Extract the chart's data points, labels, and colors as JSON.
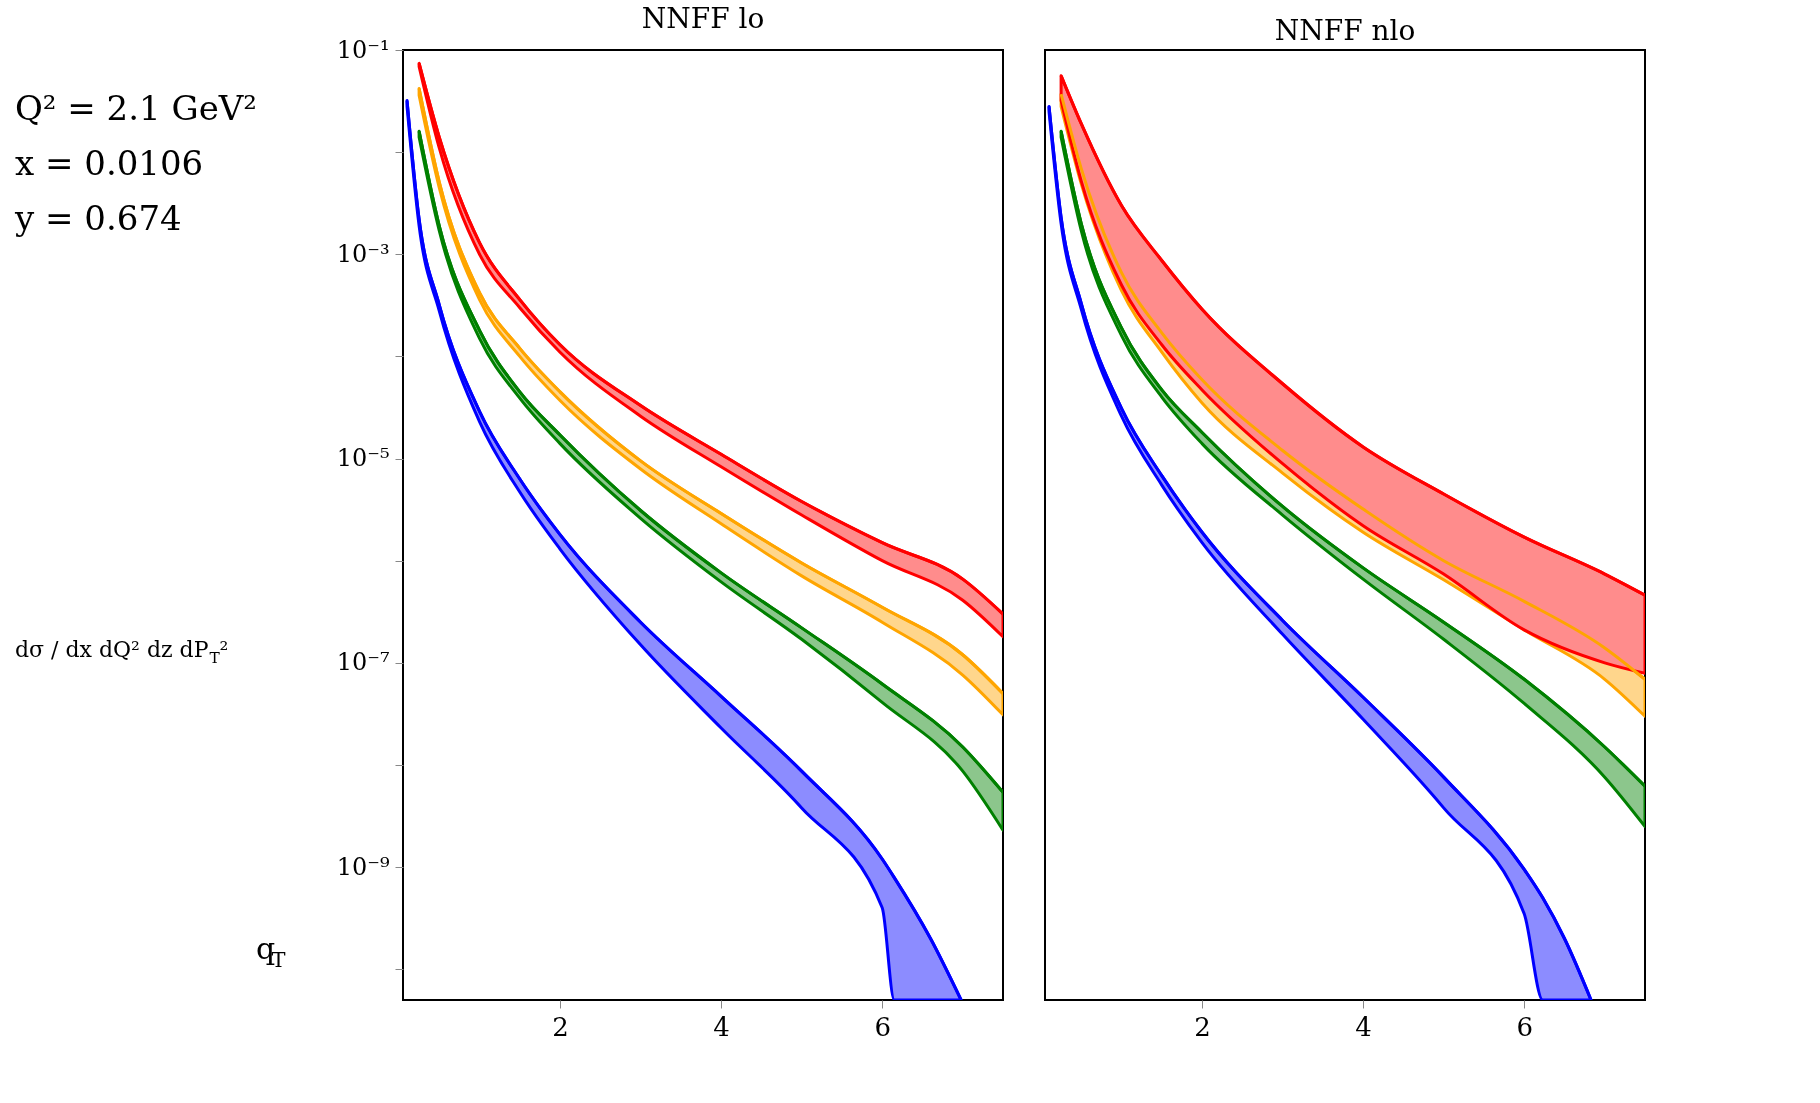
{
  "chart_data": [
    {
      "type": "other",
      "annotations": [
        "Q² = 2.1 GeV²",
        "x = 0.0106",
        "y = 0.674"
      ],
      "ylabel": "dσ / dx dQ² dz dP$_{T}$²",
      "xlabel": "q$_{T}$"
    },
    {
      "type": "line",
      "title": "NNFF lo",
      "log": "y",
      "xlim": [
        0.05,
        7.5
      ],
      "ylim": [
        5e-11,
        0.1
      ],
      "xticks": [
        2,
        4,
        6
      ],
      "yticks": [
        {
          "value": 0.1,
          "label": "10⁻¹"
        },
        {
          "value": 0.01,
          "label": null
        },
        {
          "value": 0.001,
          "label": "10⁻³"
        },
        {
          "value": 0.0001,
          "label": null
        },
        {
          "value": 1e-05,
          "label": "10⁻⁵"
        },
        {
          "value": 1e-06,
          "label": null
        },
        {
          "value": 1e-07,
          "label": "10⁻⁷"
        },
        {
          "value": 1e-08,
          "label": null
        },
        {
          "value": 1e-09,
          "label": "10⁻⁹"
        },
        {
          "value": 1e-10,
          "label": null
        }
      ],
      "grid": false,
      "x": [
        0.25,
        0.5,
        1,
        1.5,
        2,
        3,
        4,
        5,
        6,
        7,
        7.5
      ],
      "series": [
        {
          "color": "#0000ff",
          "x": [
            0.1,
            0.25,
            0.5,
            1,
            1.5,
            2,
            3,
            4,
            5,
            6,
            6.15,
            6.6,
            6.98
          ],
          "values": [
            0.032,
            0.0022,
            0.00032,
            2.9e-05,
            6.3e-06,
            1.8e-06,
            2.5e-07,
            4.7e-08,
            8.7e-09,
            1.2e-09,
            7.9e-10,
            2e-10,
            5e-11
          ],
          "upper": [
            0.032,
            0.0022,
            0.00032,
            2.9e-05,
            6.3e-06,
            1.8e-06,
            2.5e-07,
            4.7e-08,
            8.7e-09,
            1.2e-09,
            7.9e-10,
            2e-10,
            5e-11
          ],
          "lower": [
            0.028,
            0.0019,
            0.00028,
            2.3e-05,
            4.7e-06,
            1.3e-06,
            1.5e-07,
            2.3e-08,
            3.8e-09,
            4e-10,
            5e-11,
            5e-11,
            5e-11
          ]
        },
        {
          "color": "#008000",
          "values": [
            0.016,
            0.0019,
            0.00018,
            4.5e-05,
            1.7e-05,
            3.1e-06,
            7.6e-07,
            2.2e-07,
            6.2e-08,
            1.5e-08,
            5.4e-09
          ],
          "upper": [
            0.016,
            0.0019,
            0.00018,
            4.5e-05,
            1.7e-05,
            3.1e-06,
            7.6e-07,
            2.2e-07,
            6.2e-08,
            1.5e-08,
            5.4e-09
          ],
          "lower": [
            0.014,
            0.0017,
            0.00015,
            3.9e-05,
            1.4e-05,
            2.6e-06,
            6.2e-07,
            1.7e-07,
            4.1e-08,
            8.7e-09,
            2.3e-09
          ]
        },
        {
          "color": "#ffa500",
          "values": [
            0.042,
            0.0051,
            0.00042,
            0.00012,
            4.5e-05,
            9.5e-06,
            2.9e-06,
            9.5e-07,
            3.5e-07,
            1.2e-07,
            5e-08
          ],
          "upper": [
            0.042,
            0.0051,
            0.00042,
            0.00012,
            4.5e-05,
            9.5e-06,
            2.9e-06,
            9.5e-07,
            3.5e-07,
            1.2e-07,
            5e-08
          ],
          "lower": [
            0.036,
            0.0045,
            0.00036,
            0.0001,
            3.7e-05,
            7.9e-06,
            2.3e-06,
            7.1e-07,
            2.5e-07,
            7.6e-08,
            3.1e-08
          ]
        },
        {
          "color": "#ff0000",
          "values": [
            0.074,
            0.014,
            0.0013,
            0.00036,
            0.00013,
            3.3e-05,
            1.1e-05,
            3.8e-06,
            1.5e-06,
            6.6e-07,
            3e-07
          ],
          "upper": [
            0.074,
            0.014,
            0.0013,
            0.00036,
            0.00013,
            3.3e-05,
            1.1e-05,
            3.8e-06,
            1.5e-06,
            6.6e-07,
            3e-07
          ],
          "lower": [
            0.069,
            0.011,
            0.001,
            0.0003,
            0.00011,
            2.6e-05,
            8.3e-06,
            2.8e-06,
            1e-06,
            4.1e-07,
            1.8e-07
          ]
        }
      ]
    },
    {
      "type": "line",
      "title": "NNFF nlo",
      "log": "y",
      "xlim": [
        0.05,
        7.5
      ],
      "ylim": [
        5e-11,
        0.1
      ],
      "xticks": [
        2,
        4,
        6
      ],
      "tick_labels": "x",
      "grid": false,
      "x": [
        0.25,
        0.5,
        1,
        1.5,
        2,
        3,
        4,
        5,
        6,
        7,
        7.5
      ],
      "series": [
        {
          "color": "#0000ff",
          "x": [
            0.1,
            0.25,
            0.5,
            1,
            1.5,
            2,
            3,
            4,
            5,
            6,
            6.23,
            6.5,
            6.83
          ],
          "values": [
            0.028,
            0.0023,
            0.00033,
            3.1e-05,
            6.8e-06,
            1.9e-06,
            2.6e-07,
            4.6e-08,
            7.6e-09,
            9.5e-10,
            5e-10,
            2e-10,
            5e-11
          ],
          "upper": [
            0.028,
            0.0023,
            0.00033,
            3.1e-05,
            6.8e-06,
            1.9e-06,
            2.6e-07,
            4.6e-08,
            7.6e-09,
            9.5e-10,
            5e-10,
            2e-10,
            5e-11
          ],
          "lower": [
            0.025,
            0.002,
            0.00029,
            2.6e-05,
            5.5e-06,
            1.5e-06,
            1.9e-07,
            2.8e-08,
            3.8e-09,
            3.5e-10,
            5e-11,
            5e-11,
            5e-11
          ]
        },
        {
          "color": "#008000",
          "values": [
            0.016,
            0.002,
            0.00019,
            4.7e-05,
            1.8e-05,
            3.4e-06,
            8.5e-07,
            2.5e-07,
            6.9e-08,
            1.5e-08,
            6.2e-09
          ],
          "upper": [
            0.016,
            0.002,
            0.00019,
            4.7e-05,
            1.8e-05,
            3.4e-06,
            8.5e-07,
            2.5e-07,
            6.9e-08,
            1.5e-08,
            6.2e-09
          ],
          "lower": [
            0.014,
            0.0017,
            0.00016,
            4e-05,
            1.4e-05,
            2.8e-06,
            6.6e-07,
            1.7e-07,
            4e-08,
            7.6e-09,
            2.5e-09
          ]
        },
        {
          "color": "#ffa500",
          "values": [
            0.037,
            0.0069,
            0.00066,
            0.00017,
            5.9e-05,
            1.2e-05,
            3.2e-06,
            1e-06,
            4e-07,
            1.4e-07,
            6.9e-08
          ],
          "upper": [
            0.037,
            0.0069,
            0.00066,
            0.00017,
            5.9e-05,
            1.2e-05,
            3.2e-06,
            1e-06,
            4e-07,
            1.4e-07,
            6.9e-08
          ],
          "lower": [
            0.028,
            0.0049,
            0.00044,
            0.00011,
            3.5e-05,
            7.2e-06,
            1.9e-06,
            6.5e-07,
            2.1e-07,
            6.9e-08,
            3e-08
          ]
        },
        {
          "color": "#ff0000",
          "values": [
            0.056,
            0.019,
            0.003,
            0.00087,
            0.00029,
            5.4e-05,
            1.3e-05,
            4.5e-06,
            1.7e-06,
            7.4e-07,
            4.6e-07
          ],
          "upper": [
            0.056,
            0.019,
            0.003,
            0.00087,
            0.00029,
            5.4e-05,
            1.3e-05,
            4.5e-06,
            1.7e-06,
            7.4e-07,
            4.6e-07
          ],
          "lower": [
            0.032,
            0.0052,
            0.0005,
            0.00013,
            4.7e-05,
            8.9e-06,
            2.2e-06,
            7.4e-07,
            2.1e-07,
            1e-07,
            7.9e-08
          ]
        }
      ]
    }
  ]
}
